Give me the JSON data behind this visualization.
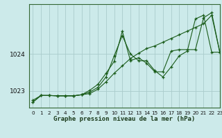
{
  "title": "Graphe pression niveau de la mer (hPa)",
  "bg_color": "#cceaea",
  "grid_color": "#aacccc",
  "line_color": "#1a5c1a",
  "xlim": [
    -0.5,
    23
  ],
  "ylim": [
    1022.55,
    1025.35
  ],
  "yticks": [
    1023,
    1024
  ],
  "xticks": [
    0,
    1,
    2,
    3,
    4,
    5,
    6,
    7,
    8,
    9,
    10,
    11,
    12,
    13,
    14,
    15,
    16,
    17,
    18,
    19,
    20,
    21,
    22,
    23
  ],
  "series": [
    [
      1022.7,
      1022.88,
      1022.88,
      1022.87,
      1022.87,
      1022.87,
      1022.9,
      1022.93,
      1023.05,
      1023.25,
      1023.48,
      1023.68,
      1023.88,
      1024.02,
      1024.15,
      1024.22,
      1024.32,
      1024.42,
      1024.52,
      1024.62,
      1024.72,
      1024.82,
      1025.05,
      1024.05
    ],
    [
      1022.75,
      1022.88,
      1022.88,
      1022.87,
      1022.87,
      1022.87,
      1022.9,
      1022.97,
      1023.1,
      1023.38,
      1023.95,
      1024.5,
      1024.0,
      1023.82,
      1023.82,
      1023.55,
      1023.38,
      1023.65,
      1023.95,
      1024.08,
      1024.95,
      1025.05,
      1024.05,
      1024.05
    ],
    [
      1022.7,
      1022.88,
      1022.88,
      1022.87,
      1022.87,
      1022.87,
      1022.9,
      1023.02,
      1023.18,
      1023.48,
      1023.8,
      1024.62,
      1023.82,
      1023.9,
      1023.75,
      1023.52,
      1023.52,
      1024.08,
      1024.12,
      1024.12,
      1024.12,
      1024.98,
      1025.12,
      1024.05
    ]
  ],
  "spine_color": "#336633",
  "xlabel_fontsize": 6.5,
  "ytick_fontsize": 6.5,
  "xtick_fontsize": 5.2
}
